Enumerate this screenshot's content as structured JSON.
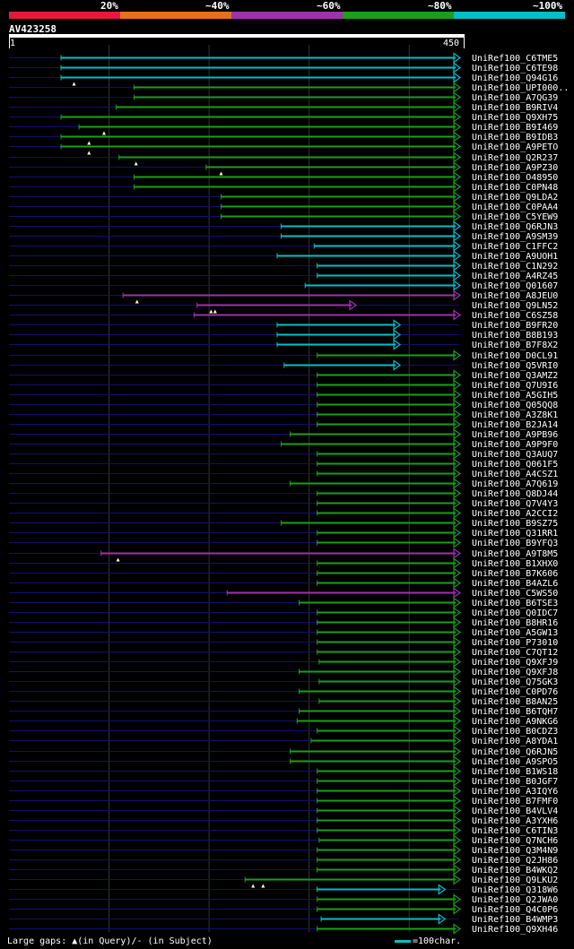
{
  "legend": {
    "labels": [
      "20%",
      "~40%",
      "~60%",
      "~80%",
      "~100%"
    ],
    "colors": [
      "#e8183c",
      "#e8701a",
      "#a030b0",
      "#18a018",
      "#00bfc8"
    ]
  },
  "query": {
    "name": "AV423258",
    "start": "1",
    "end": "450",
    "length": 450
  },
  "footer": {
    "gaps_text": "Large gaps: ▲(in Query)/- (in Subject)",
    "scale_text": "=100char."
  },
  "chart_data": {
    "type": "alignment-overview",
    "title": "AV423258",
    "query_length": 450,
    "hits": [
      {
        "name": "UniRef100_C6TME5",
        "start": 52,
        "end": 450,
        "identity": "100",
        "gaps": []
      },
      {
        "name": "UniRef100_C6TE98",
        "start": 52,
        "end": 450,
        "identity": "100",
        "gaps": []
      },
      {
        "name": "UniRef100_Q94G16",
        "start": 52,
        "end": 450,
        "identity": "100",
        "gaps": [
          65
        ]
      },
      {
        "name": "UniRef100_UPI000..",
        "start": 125,
        "end": 450,
        "identity": "80",
        "gaps": []
      },
      {
        "name": "UniRef100_A7QG39",
        "start": 125,
        "end": 450,
        "identity": "80",
        "gaps": []
      },
      {
        "name": "UniRef100_B9RIV4",
        "start": 107,
        "end": 450,
        "identity": "80",
        "gaps": []
      },
      {
        "name": "UniRef100_Q9XH75",
        "start": 52,
        "end": 450,
        "identity": "80",
        "gaps": []
      },
      {
        "name": "UniRef100_B9I469",
        "start": 70,
        "end": 450,
        "identity": "80",
        "gaps": [
          95
        ]
      },
      {
        "name": "UniRef100_B9IDB3",
        "start": 52,
        "end": 450,
        "identity": "80",
        "gaps": [
          80
        ]
      },
      {
        "name": "UniRef100_A9PETO",
        "start": 52,
        "end": 450,
        "identity": "80",
        "gaps": [
          80
        ]
      },
      {
        "name": "UniRef100_Q2R237",
        "start": 110,
        "end": 450,
        "identity": "80",
        "gaps": [
          127
        ]
      },
      {
        "name": "UniRef100_A9PZ30",
        "start": 197,
        "end": 450,
        "identity": "80",
        "gaps": [
          212
        ]
      },
      {
        "name": "UniRef100_O48950",
        "start": 125,
        "end": 450,
        "identity": "80",
        "gaps": []
      },
      {
        "name": "UniRef100_C0PN48",
        "start": 125,
        "end": 450,
        "identity": "80",
        "gaps": []
      },
      {
        "name": "UniRef100_Q9LDA2",
        "start": 212,
        "end": 450,
        "identity": "80",
        "gaps": []
      },
      {
        "name": "UniRef100_C0PAA4",
        "start": 212,
        "end": 450,
        "identity": "80",
        "gaps": []
      },
      {
        "name": "UniRef100_C5YEW9",
        "start": 212,
        "end": 450,
        "identity": "80",
        "gaps": []
      },
      {
        "name": "UniRef100_Q6RJN3",
        "start": 272,
        "end": 450,
        "identity": "100",
        "gaps": []
      },
      {
        "name": "UniRef100_A9SM39",
        "start": 272,
        "end": 450,
        "identity": "100",
        "gaps": []
      },
      {
        "name": "UniRef100_C1FFC2",
        "start": 305,
        "end": 450,
        "identity": "100",
        "gaps": []
      },
      {
        "name": "UniRef100_A9UOH1",
        "start": 268,
        "end": 450,
        "identity": "100",
        "gaps": []
      },
      {
        "name": "UniRef100_C1N292",
        "start": 308,
        "end": 450,
        "identity": "100",
        "gaps": []
      },
      {
        "name": "UniRef100_A4RZ45",
        "start": 308,
        "end": 450,
        "identity": "100",
        "gaps": []
      },
      {
        "name": "UniRef100_Q01607",
        "start": 296,
        "end": 450,
        "identity": "100",
        "gaps": []
      },
      {
        "name": "UniRef100_A8JEU0",
        "start": 114,
        "end": 450,
        "identity": "60",
        "gaps": [
          128
        ]
      },
      {
        "name": "UniRef100_Q9LN52",
        "start": 188,
        "end": 346,
        "identity": "60",
        "gaps": [
          202,
          206
        ]
      },
      {
        "name": "UniRef100_C6SZ58",
        "start": 185,
        "end": 450,
        "identity": "60",
        "gaps": []
      },
      {
        "name": "UniRef100_B9FR20",
        "start": 268,
        "end": 390,
        "identity": "100",
        "gaps": []
      },
      {
        "name": "UniRef100_B8B193",
        "start": 268,
        "end": 390,
        "identity": "100",
        "gaps": []
      },
      {
        "name": "UniRef100_B7F8X2",
        "start": 268,
        "end": 390,
        "identity": "100",
        "gaps": []
      },
      {
        "name": "UniRef100_D0CL91",
        "start": 308,
        "end": 450,
        "identity": "80",
        "gaps": []
      },
      {
        "name": "UniRef100_Q5VRI0",
        "start": 275,
        "end": 390,
        "identity": "100",
        "gaps": []
      },
      {
        "name": "UniRef100_Q3AMZ2",
        "start": 308,
        "end": 450,
        "identity": "80",
        "gaps": []
      },
      {
        "name": "UniRef100_Q7U9I6",
        "start": 308,
        "end": 450,
        "identity": "80",
        "gaps": []
      },
      {
        "name": "UniRef100_A5GIH5",
        "start": 308,
        "end": 450,
        "identity": "80",
        "gaps": []
      },
      {
        "name": "UniRef100_Q05QQ8",
        "start": 308,
        "end": 450,
        "identity": "80",
        "gaps": []
      },
      {
        "name": "UniRef100_A3Z8K1",
        "start": 308,
        "end": 450,
        "identity": "80",
        "gaps": []
      },
      {
        "name": "UniRef100_B2JA14",
        "start": 308,
        "end": 450,
        "identity": "80",
        "gaps": []
      },
      {
        "name": "UniRef100_A9PB96",
        "start": 281,
        "end": 450,
        "identity": "80",
        "gaps": []
      },
      {
        "name": "UniRef100_A9P9F0",
        "start": 272,
        "end": 450,
        "identity": "80",
        "gaps": []
      },
      {
        "name": "UniRef100_Q3AUQ7",
        "start": 308,
        "end": 450,
        "identity": "80",
        "gaps": []
      },
      {
        "name": "UniRef100_Q061F5",
        "start": 308,
        "end": 450,
        "identity": "80",
        "gaps": []
      },
      {
        "name": "UniRef100_A4CSZ1",
        "start": 308,
        "end": 450,
        "identity": "80",
        "gaps": []
      },
      {
        "name": "UniRef100_A7Q619",
        "start": 281,
        "end": 450,
        "identity": "80",
        "gaps": []
      },
      {
        "name": "UniRef100_Q8DJ44",
        "start": 308,
        "end": 450,
        "identity": "80",
        "gaps": []
      },
      {
        "name": "UniRef100_Q7V4Y3",
        "start": 308,
        "end": 450,
        "identity": "80",
        "gaps": []
      },
      {
        "name": "UniRef100_A2CCI2",
        "start": 308,
        "end": 450,
        "identity": "80",
        "gaps": []
      },
      {
        "name": "UniRef100_B9SZ75",
        "start": 272,
        "end": 450,
        "identity": "80",
        "gaps": []
      },
      {
        "name": "UniRef100_Q31RR1",
        "start": 308,
        "end": 450,
        "identity": "80",
        "gaps": []
      },
      {
        "name": "UniRef100_B9YFQ3",
        "start": 308,
        "end": 450,
        "identity": "80",
        "gaps": []
      },
      {
        "name": "UniRef100_A9T8M5",
        "start": 92,
        "end": 450,
        "identity": "60",
        "gaps": [
          109
        ]
      },
      {
        "name": "UniRef100_B1XHX0",
        "start": 308,
        "end": 450,
        "identity": "80",
        "gaps": []
      },
      {
        "name": "UniRef100_B7K606",
        "start": 308,
        "end": 450,
        "identity": "80",
        "gaps": []
      },
      {
        "name": "UniRef100_B4AZL6",
        "start": 308,
        "end": 450,
        "identity": "80",
        "gaps": []
      },
      {
        "name": "UniRef100_C5WS50",
        "start": 218,
        "end": 450,
        "identity": "60",
        "gaps": []
      },
      {
        "name": "UniRef100_B6TSE3",
        "start": 290,
        "end": 450,
        "identity": "80",
        "gaps": []
      },
      {
        "name": "UniRef100_Q0IDC7",
        "start": 308,
        "end": 450,
        "identity": "80",
        "gaps": []
      },
      {
        "name": "UniRef100_B8HR16",
        "start": 308,
        "end": 450,
        "identity": "80",
        "gaps": []
      },
      {
        "name": "UniRef100_A5GW13",
        "start": 308,
        "end": 450,
        "identity": "80",
        "gaps": []
      },
      {
        "name": "UniRef100_P73010",
        "start": 308,
        "end": 450,
        "identity": "80",
        "gaps": []
      },
      {
        "name": "UniRef100_C7QT12",
        "start": 308,
        "end": 450,
        "identity": "80",
        "gaps": []
      },
      {
        "name": "UniRef100_Q9XFJ9",
        "start": 310,
        "end": 450,
        "identity": "80",
        "gaps": []
      },
      {
        "name": "UniRef100_Q9XFJ8",
        "start": 290,
        "end": 450,
        "identity": "80",
        "gaps": []
      },
      {
        "name": "UniRef100_Q75GK3",
        "start": 310,
        "end": 450,
        "identity": "80",
        "gaps": []
      },
      {
        "name": "UniRef100_C0PD76",
        "start": 290,
        "end": 450,
        "identity": "80",
        "gaps": []
      },
      {
        "name": "UniRef100_B8AN25",
        "start": 310,
        "end": 450,
        "identity": "80",
        "gaps": []
      },
      {
        "name": "UniRef100_B6TQH7",
        "start": 290,
        "end": 450,
        "identity": "80",
        "gaps": []
      },
      {
        "name": "UniRef100_A9NKG6",
        "start": 288,
        "end": 450,
        "identity": "80",
        "gaps": []
      },
      {
        "name": "UniRef100_B0CDZ3",
        "start": 308,
        "end": 450,
        "identity": "80",
        "gaps": []
      },
      {
        "name": "UniRef100_A8YDA1",
        "start": 302,
        "end": 450,
        "identity": "80",
        "gaps": []
      },
      {
        "name": "UniRef100_Q6RJN5",
        "start": 281,
        "end": 450,
        "identity": "80",
        "gaps": []
      },
      {
        "name": "UniRef100_A9SPO5",
        "start": 281,
        "end": 450,
        "identity": "80",
        "gaps": []
      },
      {
        "name": "UniRef100_B1WS18",
        "start": 308,
        "end": 450,
        "identity": "80",
        "gaps": []
      },
      {
        "name": "UniRef100_B0JGF7",
        "start": 308,
        "end": 450,
        "identity": "80",
        "gaps": []
      },
      {
        "name": "UniRef100_A3IQY6",
        "start": 308,
        "end": 450,
        "identity": "80",
        "gaps": []
      },
      {
        "name": "UniRef100_B7FMF0",
        "start": 308,
        "end": 450,
        "identity": "80",
        "gaps": []
      },
      {
        "name": "UniRef100_B4VLV4",
        "start": 308,
        "end": 450,
        "identity": "80",
        "gaps": []
      },
      {
        "name": "UniRef100_A3YXH6",
        "start": 308,
        "end": 450,
        "identity": "80",
        "gaps": []
      },
      {
        "name": "UniRef100_C6TIN3",
        "start": 308,
        "end": 450,
        "identity": "80",
        "gaps": []
      },
      {
        "name": "UniRef100_Q7NCH6",
        "start": 310,
        "end": 450,
        "identity": "80",
        "gaps": []
      },
      {
        "name": "UniRef100_Q3M4N9",
        "start": 308,
        "end": 450,
        "identity": "80",
        "gaps": []
      },
      {
        "name": "UniRef100_Q2JH86",
        "start": 308,
        "end": 450,
        "identity": "80",
        "gaps": []
      },
      {
        "name": "UniRef100_B4WKQ2",
        "start": 308,
        "end": 450,
        "identity": "80",
        "gaps": []
      },
      {
        "name": "UniRef100_Q9LKU2",
        "start": 236,
        "end": 450,
        "identity": "80",
        "gaps": [
          244,
          254
        ]
      },
      {
        "name": "UniRef100_Q318W6",
        "start": 308,
        "end": 435,
        "identity": "100",
        "gaps": []
      },
      {
        "name": "UniRef100_Q2JWA0",
        "start": 308,
        "end": 450,
        "identity": "80",
        "gaps": []
      },
      {
        "name": "UniRef100_Q4C0P6",
        "start": 308,
        "end": 450,
        "identity": "80",
        "gaps": []
      },
      {
        "name": "UniRef100_B4WMP3",
        "start": 312,
        "end": 435,
        "identity": "100",
        "gaps": []
      },
      {
        "name": "UniRef100_Q9XH46",
        "start": 308,
        "end": 450,
        "identity": "80",
        "gaps": []
      }
    ]
  }
}
